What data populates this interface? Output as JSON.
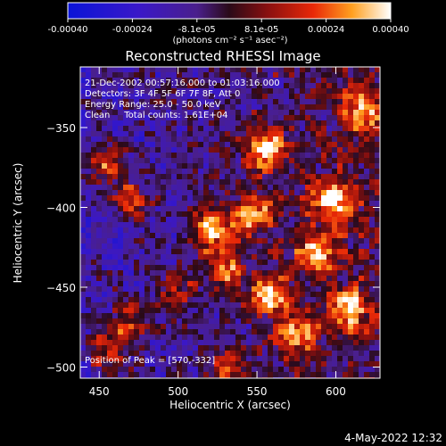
{
  "chart_data": {
    "type": "heatmap",
    "title": "Reconstructed RHESSI Image",
    "xlabel": "Heliocentric X (arcsec)",
    "ylabel": "Heliocentric Y (arcsec)",
    "xlim": [
      438,
      628
    ],
    "ylim": [
      -507,
      -312
    ],
    "x_ticks": [
      450,
      500,
      550,
      600
    ],
    "y_ticks": [
      -350,
      -400,
      -450,
      -500
    ],
    "x_tick_labels": [
      "450",
      "500",
      "550",
      "600"
    ],
    "y_tick_labels": [
      "−350",
      "−400",
      "−450",
      "−500"
    ],
    "annotations": [
      "21-Dec-2002 00:57:16.000 to 01:03:16.000",
      "Detectors: 3F 4F 5F 6F 7F 8F, Att 0",
      "Energy Range: 25.0 - 50.0 keV",
      "Clean     Total counts: 1.61E+04"
    ],
    "peak_label": "Position of Peak = [570,-332]",
    "peak": {
      "x": 570,
      "y": -332
    },
    "colorbar": {
      "range": [
        -0.0004,
        0.0004
      ],
      "tick_labels": [
        "-0.00040",
        "-0.00024",
        "-8.1e-05",
        "8.1e-05",
        "0.00024",
        "0.00040"
      ],
      "unit_label": "(photons cm⁻² s⁻¹ asec⁻²)"
    },
    "bright_regions": [
      {
        "x": 555,
        "y": -364,
        "intensity": 1.0
      },
      {
        "x": 521,
        "y": -413,
        "intensity": 0.95
      },
      {
        "x": 598,
        "y": -397,
        "intensity": 0.95
      },
      {
        "x": 588,
        "y": -428,
        "intensity": 0.9
      },
      {
        "x": 560,
        "y": -455,
        "intensity": 0.85
      },
      {
        "x": 530,
        "y": -440,
        "intensity": 0.7
      },
      {
        "x": 608,
        "y": -464,
        "intensity": 0.85
      },
      {
        "x": 575,
        "y": -480,
        "intensity": 0.75
      },
      {
        "x": 455,
        "y": -372,
        "intensity": 0.7
      },
      {
        "x": 470,
        "y": -395,
        "intensity": 0.55
      },
      {
        "x": 456,
        "y": -490,
        "intensity": 0.65
      },
      {
        "x": 500,
        "y": -455,
        "intensity": 0.5
      },
      {
        "x": 615,
        "y": -340,
        "intensity": 0.7
      },
      {
        "x": 548,
        "y": -404,
        "intensity": 0.8
      },
      {
        "x": 470,
        "y": -470,
        "intensity": 0.55
      },
      {
        "x": 532,
        "y": -500,
        "intensity": 0.6
      }
    ]
  },
  "timestamp": "4-May-2022 12:32"
}
